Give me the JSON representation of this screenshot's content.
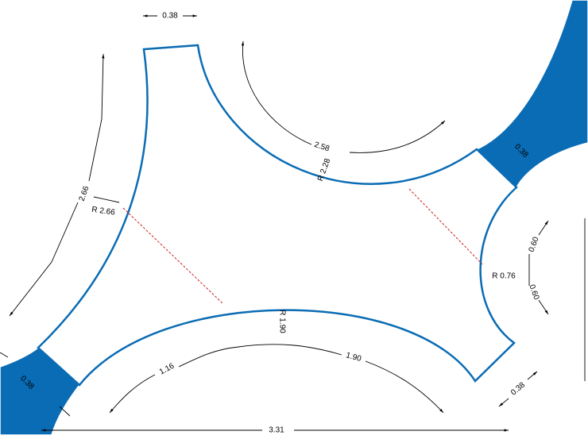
{
  "labels": [
    "0.38",
    "2.66",
    "R 2.66",
    "2.58",
    "R 2.28",
    "0.38",
    "R 0.76",
    "0.60",
    "0.60",
    "R 1.90",
    "1.16",
    "1.90",
    "0.38",
    "0.38",
    "3.31"
  ]
}
